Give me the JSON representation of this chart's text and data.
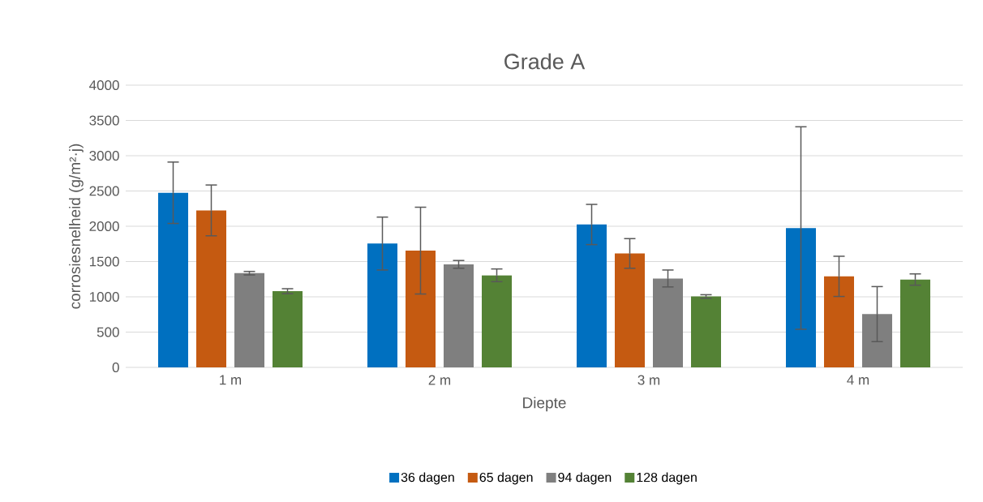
{
  "chart_data": {
    "type": "bar",
    "title": "Grade A",
    "xlabel": "Diepte",
    "ylabel": "corrosiesnelheid (g/m²·j)",
    "categories": [
      "1 m",
      "2 m",
      "3 m",
      "4 m"
    ],
    "series": [
      {
        "name": "36 dagen",
        "color": "#0070c0",
        "values": [
          2475,
          1755,
          2025,
          1975
        ],
        "errors": [
          435,
          375,
          285,
          1435
        ]
      },
      {
        "name": "65 dagen",
        "color": "#c55a11",
        "values": [
          2225,
          1655,
          1615,
          1290
        ],
        "errors": [
          360,
          615,
          210,
          285
        ]
      },
      {
        "name": "94 dagen",
        "color": "#7f7f7f",
        "values": [
          1335,
          1460,
          1260,
          755
        ],
        "errors": [
          25,
          55,
          120,
          390
        ]
      },
      {
        "name": "128 dagen",
        "color": "#548235",
        "values": [
          1080,
          1305,
          1005,
          1245
        ],
        "errors": [
          35,
          90,
          25,
          80
        ]
      }
    ],
    "ylim": [
      0,
      4000
    ],
    "yticks": [
      0,
      500,
      1000,
      1500,
      2000,
      2500,
      3000,
      3500,
      4000
    ],
    "grid": "y",
    "legend": "bottom"
  }
}
